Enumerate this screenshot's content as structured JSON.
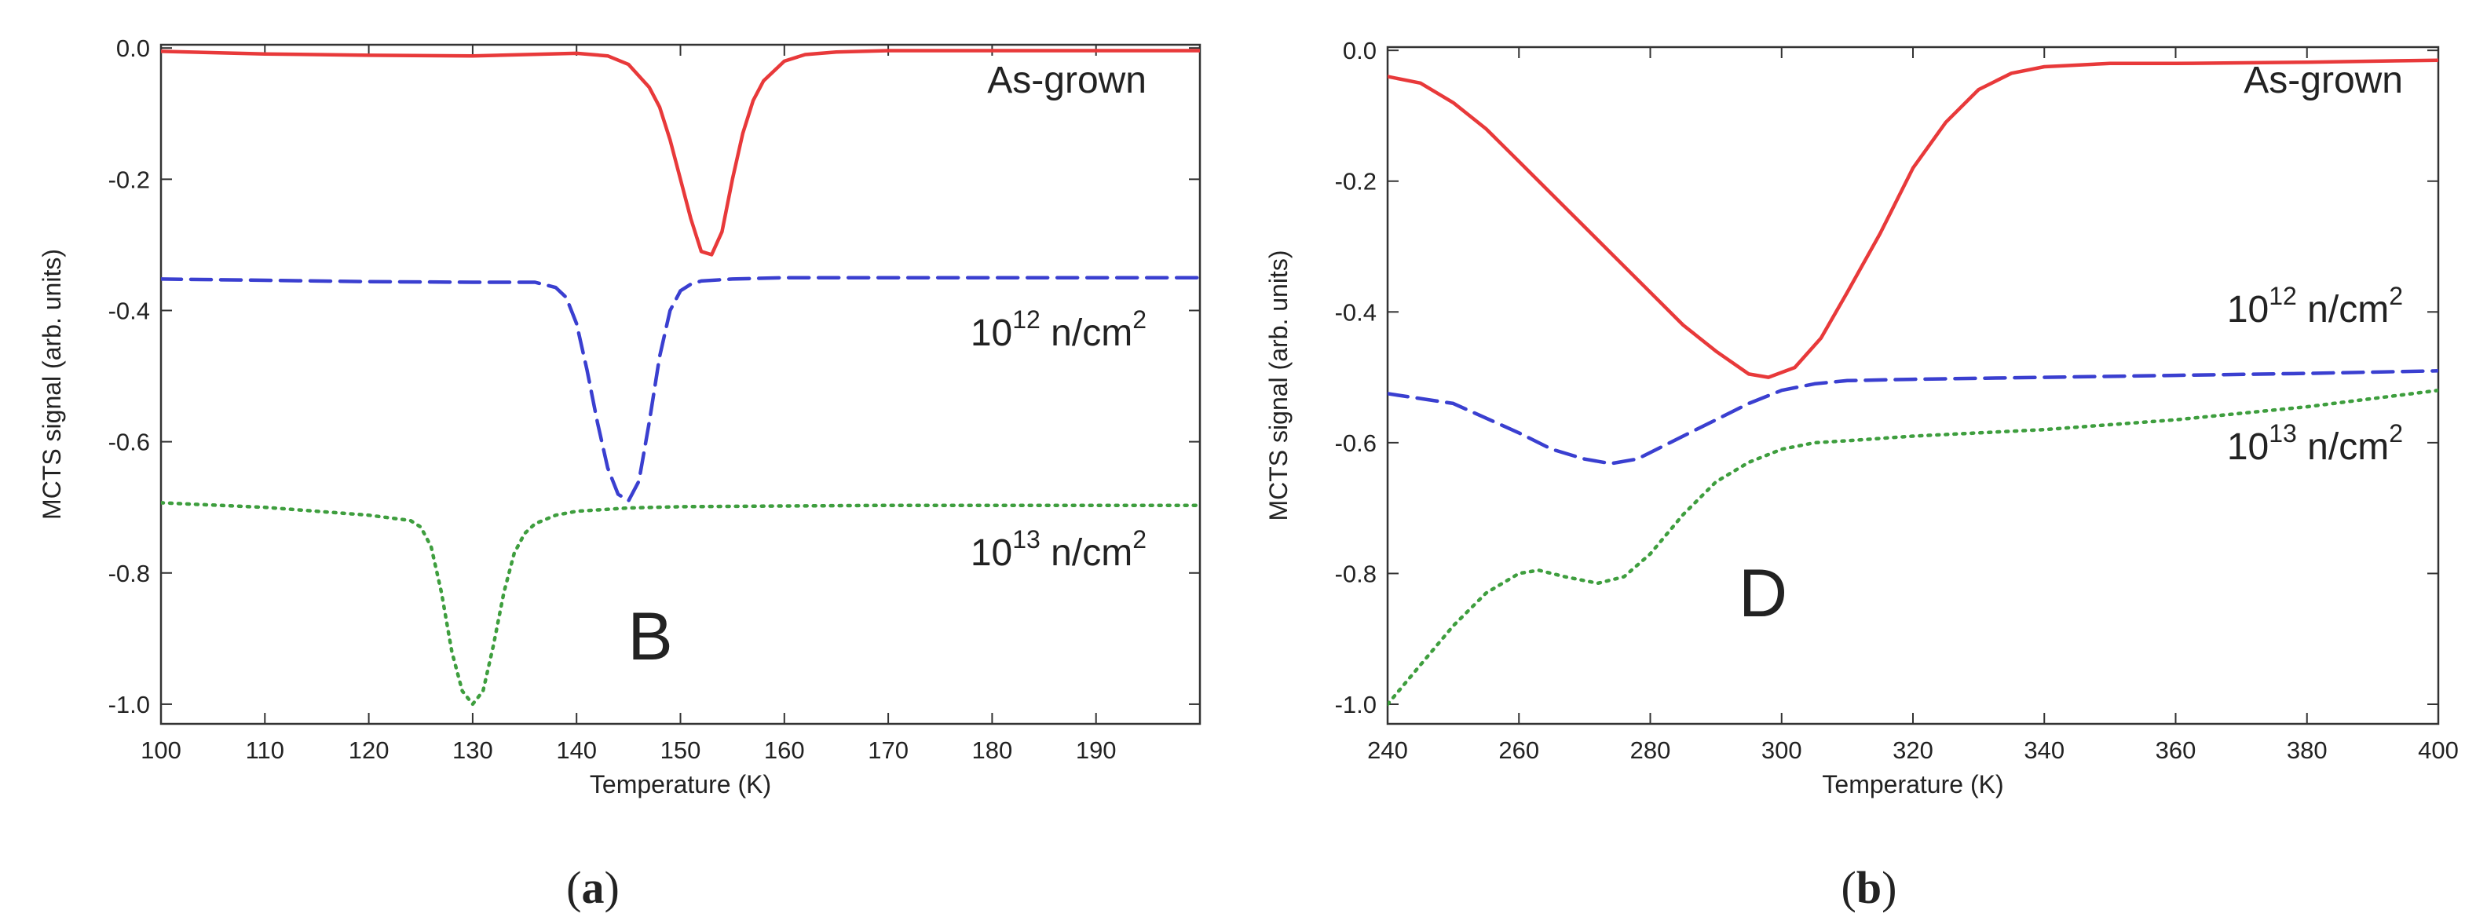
{
  "chart_data": [
    {
      "type": "line",
      "panel_caption": "(a)",
      "caption_letter": "a",
      "xlabel": "Temperature (K)",
      "ylabel": "MCTS signal (arb. units)",
      "xlim": [
        100,
        200
      ],
      "ylim": [
        -1.03,
        0.005
      ],
      "xticks": [
        100,
        110,
        120,
        130,
        140,
        150,
        160,
        170,
        180,
        190
      ],
      "yticks": [
        0.0,
        -0.2,
        -0.4,
        -0.6,
        -0.8,
        -1.0
      ],
      "ytick_labels": [
        "0.0",
        "-0.2",
        "-0.4",
        "-0.6",
        "-0.8",
        "-1.0"
      ],
      "big_label": "B",
      "series": [
        {
          "name": "As-grown",
          "label": "As-grown",
          "color": "#e8393a",
          "dash": "solid",
          "x": [
            100,
            110,
            120,
            130,
            140,
            143,
            145,
            147,
            148,
            149,
            150,
            151,
            152,
            153,
            154,
            155,
            156,
            157,
            158,
            160,
            162,
            165,
            170,
            180,
            190,
            200
          ],
          "y": [
            -0.005,
            -0.009,
            -0.011,
            -0.012,
            -0.008,
            -0.012,
            -0.025,
            -0.06,
            -0.09,
            -0.14,
            -0.2,
            -0.26,
            -0.31,
            -0.315,
            -0.28,
            -0.2,
            -0.13,
            -0.08,
            -0.05,
            -0.02,
            -0.01,
            -0.006,
            -0.004,
            -0.004,
            -0.004,
            -0.004
          ]
        },
        {
          "name": "10^12 n/cm^2",
          "label_base": "10",
          "label_exp": "12",
          "label_unit": " n/cm",
          "label_unit_exp": "2",
          "color": "#3a3fd0",
          "dash": "dashed",
          "x": [
            100,
            110,
            120,
            130,
            136,
            138,
            139,
            140,
            141,
            142,
            143,
            144,
            145,
            146,
            147,
            148,
            149,
            150,
            151,
            152,
            155,
            160,
            170,
            180,
            200
          ],
          "y": [
            -0.352,
            -0.354,
            -0.356,
            -0.357,
            -0.357,
            -0.365,
            -0.38,
            -0.42,
            -0.49,
            -0.57,
            -0.64,
            -0.68,
            -0.69,
            -0.66,
            -0.57,
            -0.47,
            -0.4,
            -0.37,
            -0.36,
            -0.355,
            -0.352,
            -0.35,
            -0.35,
            -0.35,
            -0.35
          ]
        },
        {
          "name": "10^13 n/cm^2",
          "label_base": "10",
          "label_exp": "13",
          "label_unit": " n/cm",
          "label_unit_exp": "2",
          "color": "#3e9e3e",
          "dash": "dotted",
          "x": [
            100,
            110,
            120,
            124,
            125,
            126,
            127,
            128,
            129,
            130,
            131,
            132,
            133,
            134,
            135,
            136,
            138,
            140,
            145,
            150,
            160,
            170,
            180,
            190,
            200
          ],
          "y": [
            -0.693,
            -0.7,
            -0.712,
            -0.72,
            -0.73,
            -0.76,
            -0.83,
            -0.92,
            -0.98,
            -1.0,
            -0.98,
            -0.91,
            -0.83,
            -0.77,
            -0.74,
            -0.725,
            -0.712,
            -0.706,
            -0.701,
            -0.699,
            -0.698,
            -0.697,
            -0.697,
            -0.697,
            -0.697
          ]
        }
      ]
    },
    {
      "type": "line",
      "panel_caption": "(b)",
      "caption_letter": "b",
      "xlabel": "Temperature (K)",
      "ylabel": "MCTS signal (arb. units)",
      "xlim": [
        240,
        400
      ],
      "ylim": [
        -1.03,
        0.005
      ],
      "xticks": [
        240,
        260,
        280,
        300,
        320,
        340,
        360,
        380,
        400
      ],
      "yticks": [
        0.0,
        -0.2,
        -0.4,
        -0.6,
        -0.8,
        -1.0
      ],
      "ytick_labels": [
        "0.0",
        "-0.2",
        "-0.4",
        "-0.6",
        "-0.8",
        "-1.0"
      ],
      "big_label": "D",
      "series": [
        {
          "name": "As-grown",
          "label": "As-grown",
          "color": "#e8393a",
          "dash": "solid",
          "x": [
            240,
            245,
            250,
            255,
            260,
            265,
            270,
            275,
            280,
            285,
            290,
            295,
            298,
            302,
            306,
            310,
            315,
            320,
            325,
            330,
            335,
            340,
            350,
            360,
            380,
            400
          ],
          "y": [
            -0.04,
            -0.05,
            -0.08,
            -0.12,
            -0.17,
            -0.22,
            -0.27,
            -0.32,
            -0.37,
            -0.42,
            -0.46,
            -0.495,
            -0.5,
            -0.485,
            -0.44,
            -0.37,
            -0.28,
            -0.18,
            -0.11,
            -0.06,
            -0.035,
            -0.025,
            -0.02,
            -0.02,
            -0.018,
            -0.015
          ]
        },
        {
          "name": "10^12 n/cm^2",
          "label_base": "10",
          "label_exp": "12",
          "label_unit": " n/cm",
          "label_unit_exp": "2",
          "color": "#3a3fd0",
          "dash": "dashed",
          "x": [
            240,
            250,
            260,
            265,
            270,
            274,
            278,
            285,
            290,
            295,
            300,
            305,
            310,
            320,
            340,
            360,
            380,
            400
          ],
          "y": [
            -0.525,
            -0.54,
            -0.585,
            -0.61,
            -0.625,
            -0.632,
            -0.625,
            -0.59,
            -0.565,
            -0.54,
            -0.52,
            -0.51,
            -0.505,
            -0.503,
            -0.5,
            -0.497,
            -0.494,
            -0.49
          ]
        },
        {
          "name": "10^13 n/cm^2",
          "label_base": "10",
          "label_exp": "13",
          "label_unit": " n/cm",
          "label_unit_exp": "2",
          "color": "#3e9e3e",
          "dash": "dotted",
          "x": [
            240,
            245,
            250,
            255,
            260,
            263,
            267,
            272,
            276,
            280,
            285,
            290,
            295,
            300,
            305,
            310,
            320,
            340,
            360,
            380,
            400
          ],
          "y": [
            -1.0,
            -0.94,
            -0.88,
            -0.83,
            -0.8,
            -0.795,
            -0.805,
            -0.815,
            -0.805,
            -0.77,
            -0.71,
            -0.66,
            -0.63,
            -0.61,
            -0.6,
            -0.597,
            -0.59,
            -0.58,
            -0.565,
            -0.545,
            -0.52
          ]
        }
      ]
    }
  ]
}
